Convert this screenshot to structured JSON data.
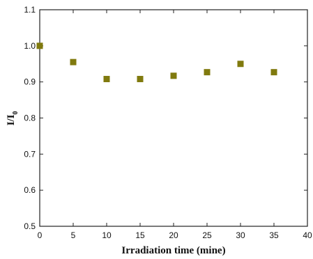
{
  "chart_data": {
    "type": "scatter",
    "title": "",
    "xlabel": "Irradiation time (mine)",
    "ylabel": "I/I",
    "ylabel_subscript": "0",
    "xlim": [
      0,
      40
    ],
    "ylim": [
      0.5,
      1.1
    ],
    "xticks": [
      0,
      5,
      10,
      15,
      20,
      25,
      30,
      35,
      40
    ],
    "yticks": [
      0.5,
      0.6,
      0.7,
      0.8,
      0.9,
      1.0,
      1.1
    ],
    "ytick_labels": [
      "0.5",
      "0.6",
      "0.7",
      "0.8",
      "0.9",
      "1.0",
      "1.1"
    ],
    "grid": false,
    "legend": "none",
    "marker": "square",
    "marker_color": "#807a0e",
    "x": [
      0,
      5,
      10,
      15,
      20,
      25,
      30,
      35
    ],
    "y": [
      1.0,
      0.955,
      0.908,
      0.908,
      0.917,
      0.927,
      0.95,
      0.927
    ]
  }
}
